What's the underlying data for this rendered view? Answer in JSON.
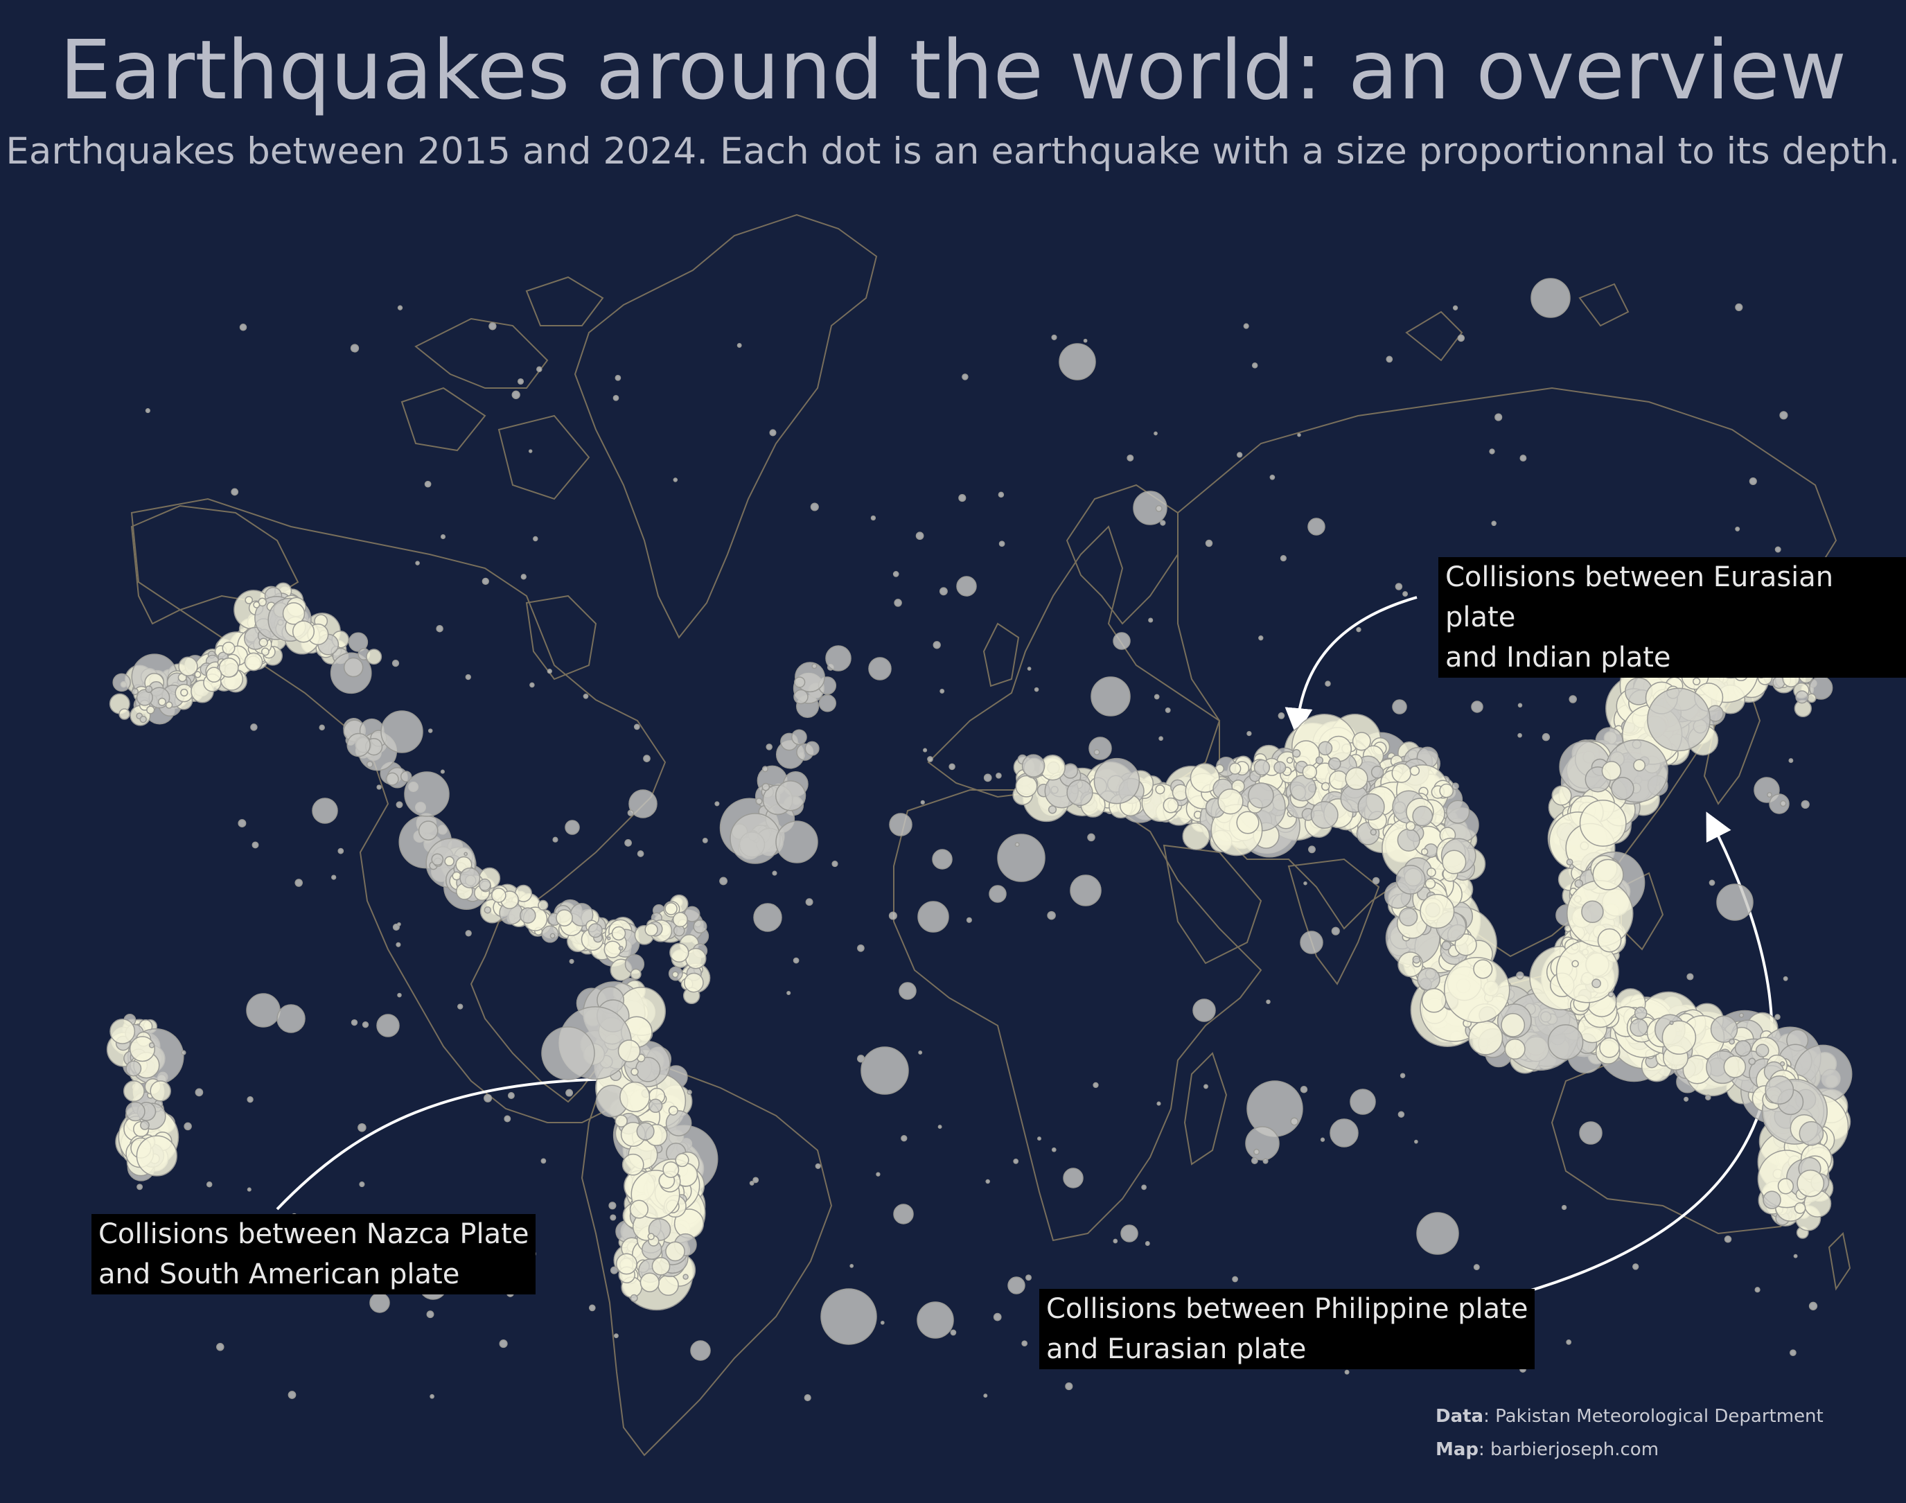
{
  "title": "Earthquakes around the world: an overview",
  "subtitle": "Earthquakes between 2015 and 2024. Each dot is an earthquake with a size proportionnal to its depth.",
  "annotations": {
    "eurasian_indian": {
      "line1": "Collisions between Eurasian plate",
      "line2": "and Indian plate"
    },
    "nazca": {
      "line1": "Collisions between Nazca Plate",
      "line2": "and South American plate"
    },
    "philippine": {
      "line1": "Collisions between Philippine plate",
      "line2": "and Eurasian plate"
    }
  },
  "credits": {
    "data_label": "Data",
    "data_source": ": Pakistan Meteorological Department",
    "map_label": "Map",
    "map_source": ": barbierjoseph.com"
  },
  "colors": {
    "background": "#15203d",
    "dot_fill": "#c8c8c4",
    "dot_fill_dense": "#f6f4dc",
    "coastline": "#8a7d61",
    "arrow": "#ffffff"
  }
}
